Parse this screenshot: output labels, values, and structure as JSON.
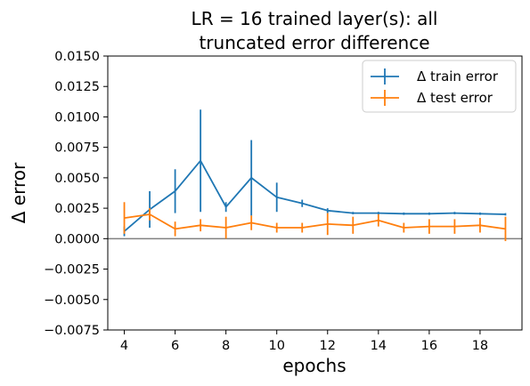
{
  "chart_data": {
    "type": "line",
    "title_lines": [
      "LR = 16 trained layer(s): all",
      "truncated error difference"
    ],
    "xlabel": "epochs",
    "ylabel": "Δ error",
    "xlim": [
      3.35,
      19.65
    ],
    "ylim": [
      -0.0075,
      0.015
    ],
    "xticks": [
      4,
      6,
      8,
      10,
      12,
      14,
      16,
      18
    ],
    "xtick_labels": [
      "4",
      "6",
      "8",
      "10",
      "12",
      "14",
      "16",
      "18"
    ],
    "yticks": [
      -0.0075,
      -0.005,
      -0.0025,
      0,
      0.0025,
      0.005,
      0.0075,
      0.01,
      0.0125,
      0.015
    ],
    "ytick_labels": [
      "−0.0075",
      "−0.0050",
      "−0.0025",
      "0.0000",
      "0.0025",
      "0.0050",
      "0.0075",
      "0.0100",
      "0.0125",
      "0.0150"
    ],
    "hline": 0,
    "legend_position": "upper right",
    "x": [
      4,
      5,
      6,
      7,
      8,
      9,
      10,
      11,
      12,
      13,
      14,
      15,
      16,
      17,
      18,
      19
    ],
    "series": [
      {
        "name": "Δ train error",
        "color": "#1f77b4",
        "values": [
          0.0006,
          0.0024,
          0.0039,
          0.0064,
          0.0026,
          0.005,
          0.0034,
          0.0029,
          0.0023,
          0.0021,
          0.0021,
          0.00205,
          0.00205,
          0.0021,
          0.00205,
          0.002
        ],
        "errors": [
          0.0004,
          0.0015,
          0.0018,
          0.0042,
          0.0004,
          0.0031,
          0.0012,
          0.0003,
          0.0002,
          0.0001,
          0.0001,
          0.0001,
          0.0001,
          0.0001,
          0.0001,
          0.0001
        ]
      },
      {
        "name": "Δ test error",
        "color": "#ff7f0e",
        "values": [
          0.0017,
          0.002,
          0.0008,
          0.0011,
          0.0009,
          0.0013,
          0.0009,
          0.0009,
          0.0012,
          0.0011,
          0.0015,
          0.0009,
          0.001,
          0.001,
          0.0011,
          0.0008
        ],
        "errors": [
          0.0013,
          0.0005,
          0.0006,
          0.0005,
          0.0009,
          0.0006,
          0.0004,
          0.0004,
          0.0009,
          0.0007,
          0.0005,
          0.0004,
          0.0006,
          0.0006,
          0.0006,
          0.001
        ]
      }
    ]
  }
}
